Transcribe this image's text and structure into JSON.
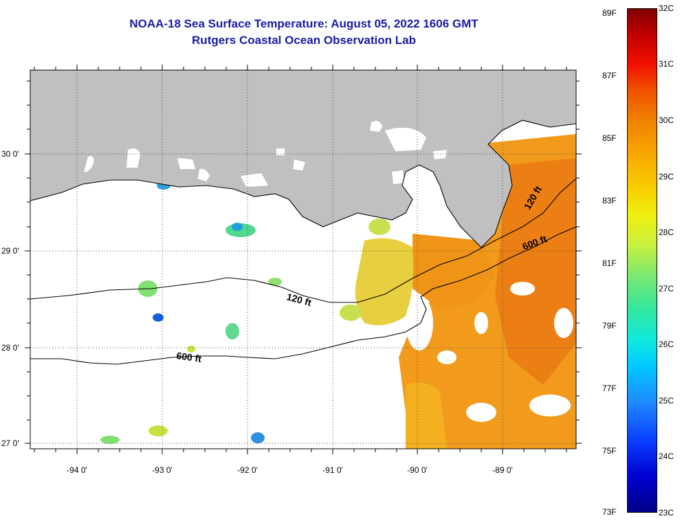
{
  "title": {
    "line1": "NOAA-18 Sea Surface Temperature:  August 05, 2022 1606 GMT",
    "line2": "Rutgers Coastal Ocean Observation Lab"
  },
  "map": {
    "lon_labels": [
      "-94 0'",
      "-93 0'",
      "-92 0'",
      "-91 0'",
      "-90 0'",
      "-89 0'"
    ],
    "lat_labels": [
      "30 0'",
      "29 0'",
      "28 0'",
      "27 0'"
    ],
    "contour_labels": {
      "c120_west": "120 ft",
      "c600_west": "600 ft",
      "c600_east": "600 ft",
      "c120_east": "120 ft"
    },
    "colors": {
      "land": "#c0c0c0",
      "cloud": "#ffffff",
      "contour": "#000000"
    }
  },
  "colorbar": {
    "fahrenheit": [
      "89F",
      "87F",
      "85F",
      "83F",
      "81F",
      "79F",
      "77F",
      "75F",
      "73F"
    ],
    "celsius": [
      "32C",
      "31C",
      "30C",
      "29C",
      "28C",
      "27C",
      "26C",
      "25C",
      "24C",
      "23C"
    ],
    "range_f": [
      73,
      89
    ],
    "range_c": [
      23,
      32
    ]
  }
}
